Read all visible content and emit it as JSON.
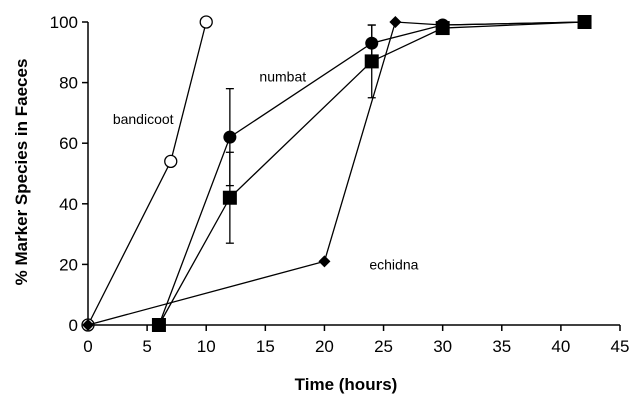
{
  "chart_data": {
    "type": "line",
    "xlabel": "Time (hours)",
    "ylabel": "% Marker Species in Faeces",
    "xlim": [
      0,
      45
    ],
    "ylim": [
      0,
      100
    ],
    "xticks": [
      0,
      5,
      10,
      15,
      20,
      25,
      30,
      35,
      40,
      45
    ],
    "yticks": [
      0,
      20,
      40,
      60,
      80,
      100
    ],
    "grid": false,
    "legend": "none",
    "series": [
      {
        "marker": "open-circle",
        "points": [
          {
            "x": 0,
            "y": 0
          },
          {
            "x": 7,
            "y": 54
          },
          {
            "x": 10,
            "y": 100
          }
        ]
      },
      {
        "marker": "filled-circle",
        "points": [
          {
            "x": 6,
            "y": 0
          },
          {
            "x": 12,
            "y": 62,
            "err": 16
          },
          {
            "x": 24,
            "y": 93,
            "err": 6
          },
          {
            "x": 30,
            "y": 99
          },
          {
            "x": 42,
            "y": 100
          }
        ]
      },
      {
        "marker": "filled-square",
        "points": [
          {
            "x": 6,
            "y": 0
          },
          {
            "x": 12,
            "y": 42,
            "err": 15
          },
          {
            "x": 24,
            "y": 87,
            "err": 12
          },
          {
            "x": 30,
            "y": 98
          },
          {
            "x": 42,
            "y": 100
          }
        ]
      },
      {
        "marker": "filled-diamond",
        "points": [
          {
            "x": 0,
            "y": 0
          },
          {
            "x": 20,
            "y": 21
          },
          {
            "x": 26,
            "y": 100
          },
          {
            "x": 30,
            "y": 99
          },
          {
            "x": 42,
            "y": 100
          }
        ]
      }
    ],
    "annotations": [
      {
        "text": "bandicoot",
        "x": 2.1,
        "y": 68
      },
      {
        "text": "numbat",
        "x": 14.5,
        "y": 82
      },
      {
        "text": "echidna",
        "x": 23.8,
        "y": 20
      }
    ]
  }
}
